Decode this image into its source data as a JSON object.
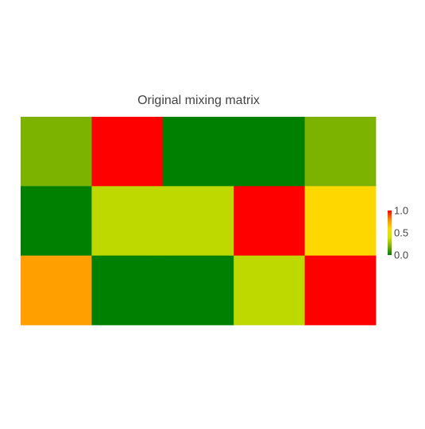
{
  "chart_data": {
    "type": "heatmap",
    "title": "Original mixing matrix",
    "xlabel": "",
    "ylabel": "",
    "rows": 3,
    "cols": 5,
    "values": [
      [
        0.2,
        1.0,
        0.0,
        0.0,
        0.2
      ],
      [
        0.0,
        0.35,
        0.35,
        1.0,
        0.6
      ],
      [
        0.75,
        0.0,
        0.0,
        0.35,
        1.0
      ]
    ],
    "zlim": [
      0.0,
      1.0
    ],
    "colorbar": {
      "ticks": [
        0.0,
        0.5,
        1.0
      ],
      "tick_labels": [
        "0.0",
        "0.5",
        "1.0"
      ],
      "placement": "right"
    },
    "colorscale": [
      "#008000",
      "#7cb300",
      "#d4e600",
      "#ffd700",
      "#ff8c00",
      "#ff0000"
    ]
  }
}
